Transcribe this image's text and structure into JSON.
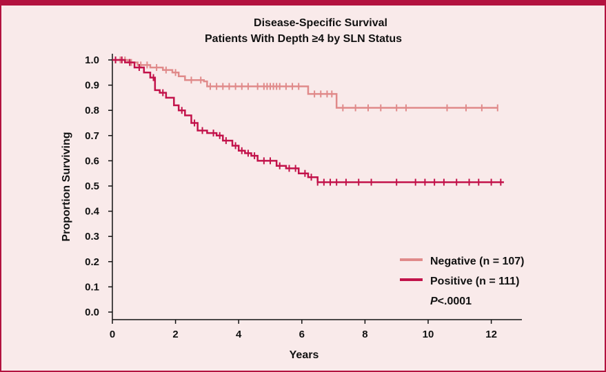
{
  "chart_data": {
    "type": "line",
    "title_line1": "Disease-Specific Survival",
    "title_line2": "Patients With Depth ≥4 by SLN Status",
    "xlabel": "Years",
    "ylabel": "Proportion Surviving",
    "xlim": [
      0,
      13
    ],
    "ylim": [
      0,
      1.0
    ],
    "xticks": [
      "0",
      "2",
      "4",
      "6",
      "8",
      "10",
      "12"
    ],
    "yticks": [
      "0.0",
      "0.1",
      "0.2",
      "0.3",
      "0.4",
      "0.5",
      "0.6",
      "0.7",
      "0.8",
      "0.9",
      "1.0"
    ],
    "legend_position": "bottom-right",
    "series": [
      {
        "name": "Negative (n = 107)",
        "color": "#e08a8a",
        "steps": [
          [
            0,
            1.0
          ],
          [
            0.5,
            0.99
          ],
          [
            0.8,
            0.98
          ],
          [
            1.2,
            0.97
          ],
          [
            1.6,
            0.96
          ],
          [
            1.9,
            0.95
          ],
          [
            2.1,
            0.935
          ],
          [
            2.3,
            0.92
          ],
          [
            2.9,
            0.915
          ],
          [
            3.0,
            0.895
          ],
          [
            6.2,
            0.865
          ],
          [
            7.1,
            0.81
          ],
          [
            12.2,
            0.81
          ]
        ],
        "censors": [
          0.1,
          0.25,
          0.4,
          0.6,
          0.9,
          1.1,
          1.4,
          1.7,
          2.0,
          2.5,
          2.8,
          3.1,
          3.3,
          3.5,
          3.7,
          3.9,
          4.1,
          4.3,
          4.6,
          4.8,
          4.9,
          5.0,
          5.1,
          5.2,
          5.3,
          5.5,
          5.7,
          5.9,
          6.4,
          6.6,
          6.8,
          6.95,
          7.3,
          7.7,
          8.1,
          8.5,
          9.0,
          9.3,
          10.6,
          11.2,
          11.7,
          12.2
        ]
      },
      {
        "name": "Positive (n = 111)",
        "color": "#c2124a",
        "steps": [
          [
            0,
            1.0
          ],
          [
            0.4,
            0.99
          ],
          [
            0.7,
            0.97
          ],
          [
            1.0,
            0.95
          ],
          [
            1.2,
            0.93
          ],
          [
            1.35,
            0.88
          ],
          [
            1.5,
            0.87
          ],
          [
            1.7,
            0.85
          ],
          [
            1.95,
            0.82
          ],
          [
            2.1,
            0.8
          ],
          [
            2.3,
            0.78
          ],
          [
            2.5,
            0.75
          ],
          [
            2.7,
            0.72
          ],
          [
            3.0,
            0.71
          ],
          [
            3.3,
            0.7
          ],
          [
            3.5,
            0.68
          ],
          [
            3.8,
            0.66
          ],
          [
            4.0,
            0.64
          ],
          [
            4.2,
            0.63
          ],
          [
            4.4,
            0.62
          ],
          [
            4.6,
            0.6
          ],
          [
            5.2,
            0.58
          ],
          [
            5.5,
            0.57
          ],
          [
            5.9,
            0.55
          ],
          [
            6.2,
            0.535
          ],
          [
            6.5,
            0.515
          ],
          [
            12.4,
            0.515
          ]
        ],
        "censors": [
          0.1,
          0.3,
          0.55,
          0.85,
          1.3,
          1.6,
          2.2,
          2.6,
          2.85,
          3.2,
          3.4,
          3.6,
          3.9,
          4.1,
          4.3,
          4.5,
          4.8,
          5.0,
          5.3,
          5.6,
          5.8,
          6.1,
          6.3,
          6.5,
          6.7,
          6.9,
          7.1,
          7.4,
          7.8,
          8.2,
          9.0,
          9.6,
          9.9,
          10.2,
          10.5,
          10.9,
          11.3,
          11.6,
          12.0,
          12.3
        ]
      }
    ],
    "annotation_prefix": "P",
    "annotation_value": "<.0001"
  }
}
